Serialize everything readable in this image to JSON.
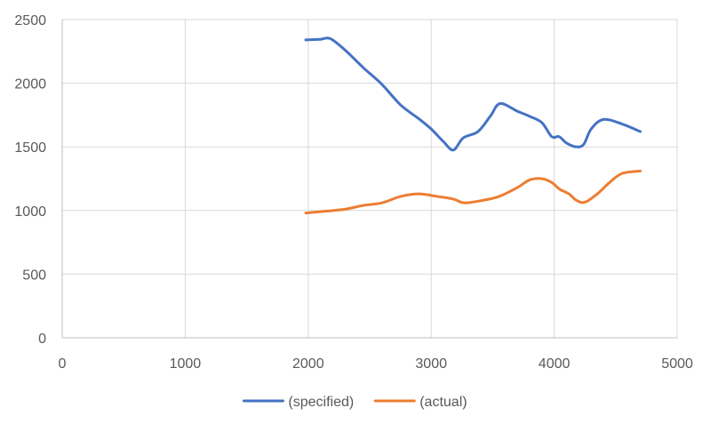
{
  "chart_data": {
    "type": "line",
    "title": "",
    "xlabel": "",
    "ylabel": "",
    "xlim": [
      0,
      5000
    ],
    "ylim": [
      0,
      2500
    ],
    "xticks": [
      0,
      1000,
      2000,
      3000,
      4000,
      5000
    ],
    "yticks": [
      0,
      500,
      1000,
      1500,
      2000,
      2500
    ],
    "xtick_labels": [
      "0",
      "1000",
      "2000",
      "3000",
      "4000",
      "5000"
    ],
    "ytick_labels": [
      "0",
      "500",
      "1000",
      "1500",
      "2000",
      "2500"
    ],
    "grid": true,
    "legend_position": "bottom",
    "series": [
      {
        "name": "(specified)",
        "color": "#4472C4",
        "x": [
          1980,
          2100,
          2180,
          2300,
          2450,
          2600,
          2750,
          2900,
          3000,
          3100,
          3180,
          3260,
          3380,
          3480,
          3560,
          3700,
          3800,
          3900,
          3980,
          4040,
          4100,
          4180,
          4240,
          4300,
          4400,
          4550,
          4700
        ],
        "y": [
          2340,
          2345,
          2350,
          2260,
          2120,
          1990,
          1830,
          1720,
          1640,
          1540,
          1475,
          1570,
          1620,
          1740,
          1840,
          1780,
          1740,
          1690,
          1580,
          1580,
          1530,
          1500,
          1520,
          1640,
          1715,
          1680,
          1620
        ]
      },
      {
        "name": "(actual)",
        "color": "#ED7D31",
        "x": [
          1980,
          2150,
          2300,
          2450,
          2600,
          2750,
          2900,
          3050,
          3180,
          3270,
          3420,
          3550,
          3700,
          3800,
          3900,
          3980,
          4040,
          4120,
          4180,
          4250,
          4350,
          4450,
          4550,
          4700
        ],
        "y": [
          980,
          995,
          1010,
          1040,
          1060,
          1110,
          1130,
          1110,
          1090,
          1060,
          1080,
          1110,
          1180,
          1240,
          1250,
          1220,
          1170,
          1130,
          1080,
          1065,
          1130,
          1220,
          1290,
          1310
        ]
      }
    ]
  }
}
